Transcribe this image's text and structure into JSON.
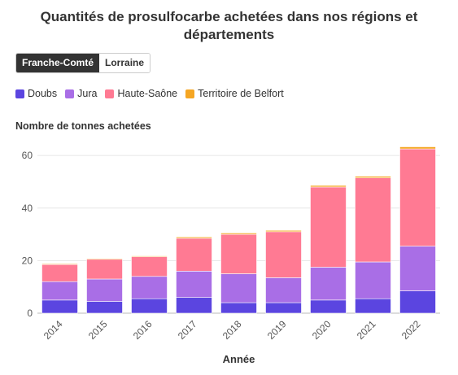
{
  "title": "Quantités de prosulfocarbe achetées dans nos régions et départements",
  "tabs": [
    {
      "label": "Franche-Comté",
      "active": true
    },
    {
      "label": "Lorraine",
      "active": false
    }
  ],
  "chart_data": {
    "type": "bar",
    "stacked": true,
    "ylabel": "Nombre de tonnes achetées",
    "xlabel": "Année",
    "categories": [
      "2014",
      "2015",
      "2016",
      "2017",
      "2018",
      "2019",
      "2020",
      "2021",
      "2022"
    ],
    "ylim": [
      0,
      65
    ],
    "yticks": [
      0,
      20,
      40,
      60
    ],
    "grid": true,
    "legend_position": "top-left",
    "series": [
      {
        "name": "Doubs",
        "color": "#5b45e0",
        "values": [
          5,
          4.5,
          5.5,
          6,
          4,
          4,
          5,
          5.5,
          8.5
        ]
      },
      {
        "name": "Jura",
        "color": "#a96ee6",
        "values": [
          7,
          8.5,
          8.5,
          10,
          11,
          9.5,
          12.5,
          14,
          17
        ]
      },
      {
        "name": "Haute-Saône",
        "color": "#ff7a93",
        "values": [
          6.5,
          7.5,
          7.5,
          12.5,
          15,
          17.5,
          30.5,
          32,
          37
        ]
      },
      {
        "name": "Territoire de Belfort",
        "color": "#f5a623",
        "values": [
          0.3,
          0.3,
          0.3,
          0.5,
          0.5,
          0.5,
          0.6,
          0.6,
          0.8
        ]
      }
    ]
  }
}
